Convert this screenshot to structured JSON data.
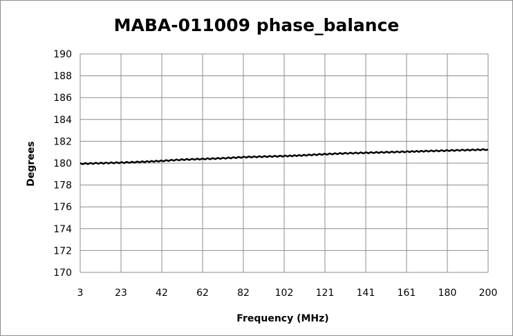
{
  "chart_data": {
    "type": "line",
    "title": "MABA-011009 phase_balance",
    "xlabel": "Frequency (MHz)",
    "ylabel": "Degrees",
    "x_tick_labels": [
      "3",
      "23",
      "42",
      "62",
      "82",
      "102",
      "121",
      "141",
      "161",
      "180",
      "200"
    ],
    "y_tick_labels": [
      "170",
      "172",
      "174",
      "176",
      "178",
      "180",
      "182",
      "184",
      "186",
      "188",
      "190"
    ],
    "xlim": [
      3,
      200
    ],
    "ylim": [
      170,
      190
    ],
    "grid": true,
    "legend": "none",
    "line_color": "#000000",
    "series": [
      {
        "x": [
          3,
          13,
          23,
          33,
          42,
          52,
          62,
          72,
          82,
          92,
          102,
          111,
          121,
          131,
          141,
          151,
          161,
          170,
          180,
          190,
          200
        ],
        "values": [
          179.95,
          180.0,
          180.05,
          180.12,
          180.2,
          180.32,
          180.38,
          180.45,
          180.55,
          180.6,
          180.65,
          180.72,
          180.82,
          180.9,
          180.95,
          181.0,
          181.05,
          181.1,
          181.15,
          181.2,
          181.25
        ]
      }
    ]
  }
}
